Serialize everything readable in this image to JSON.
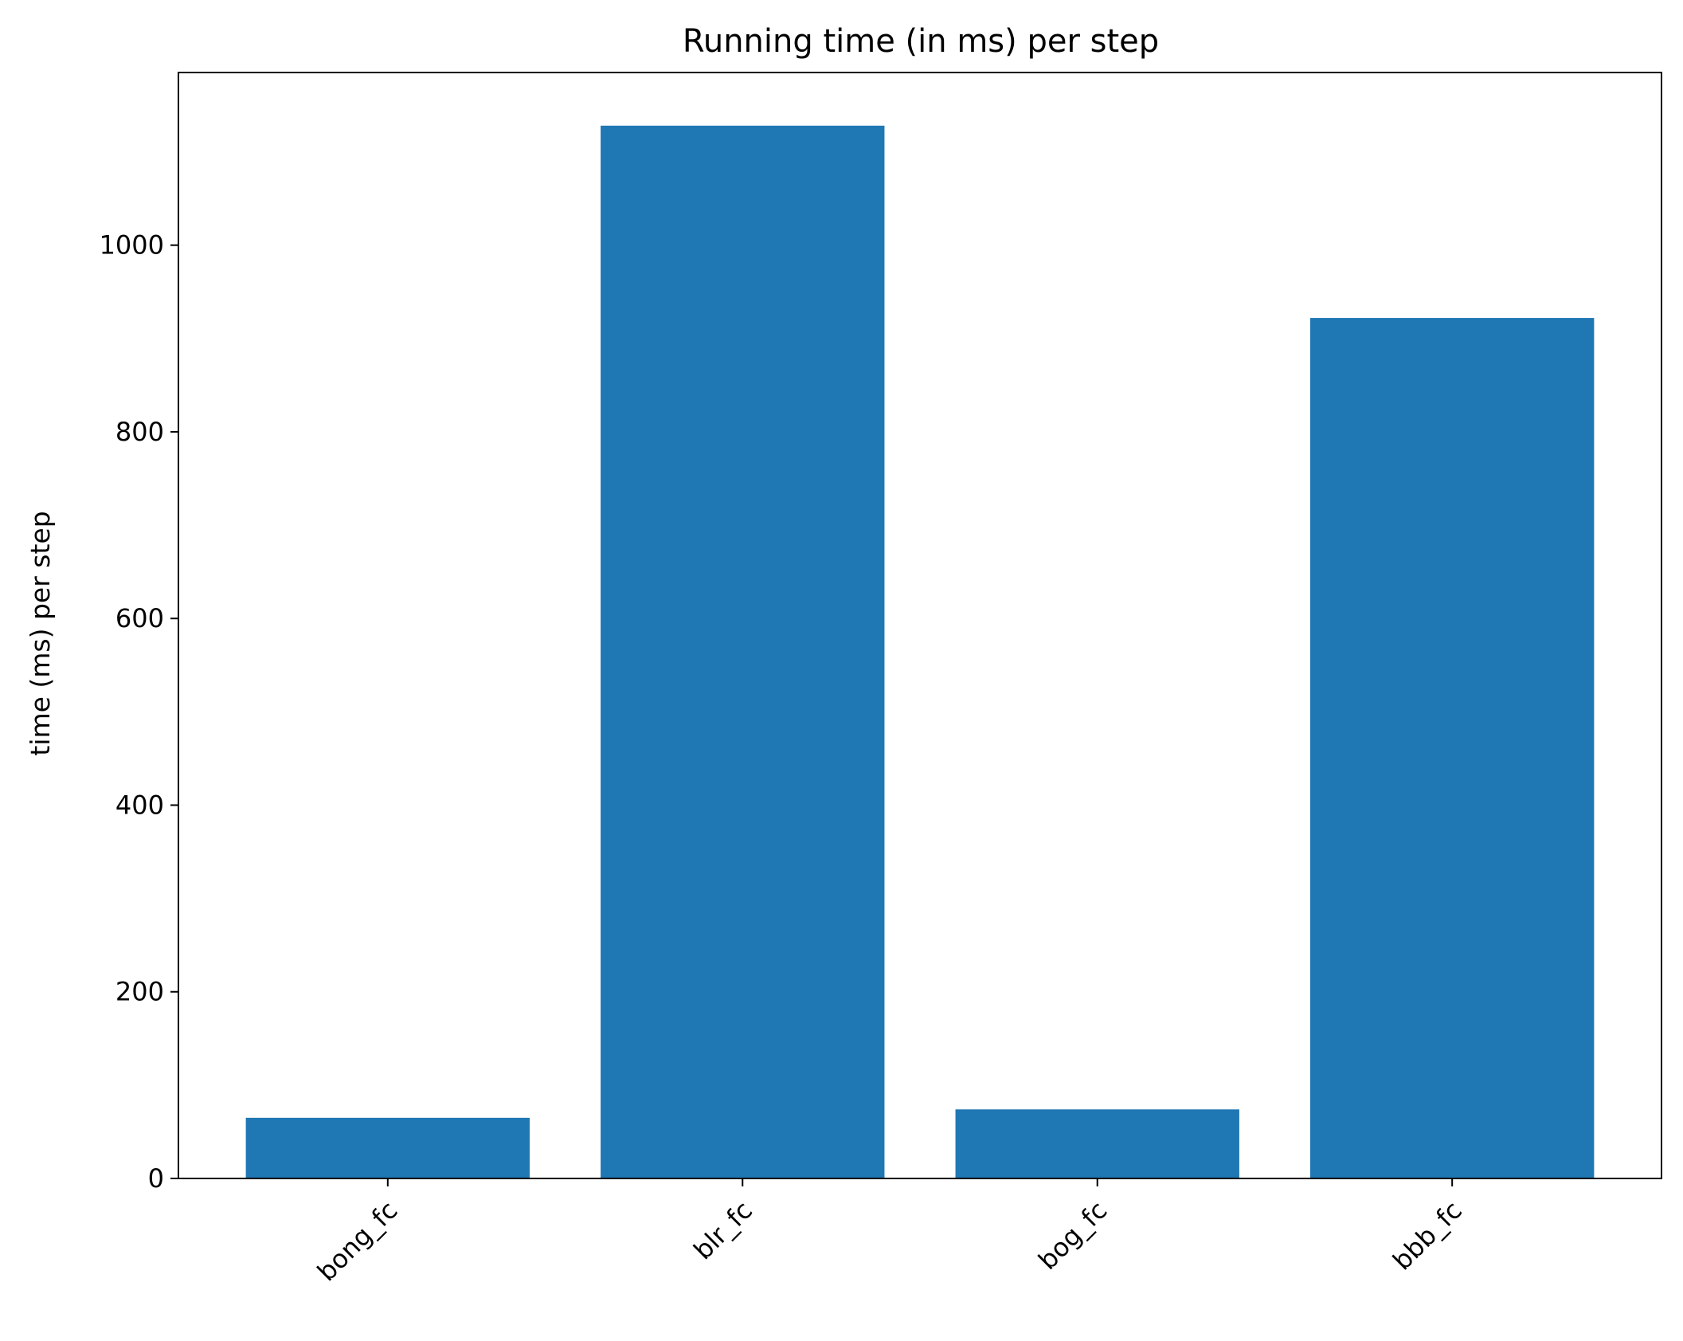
{
  "chart_data": {
    "type": "bar",
    "title": "Running time (in ms) per step",
    "xlabel": "",
    "ylabel": "time (ms) per step",
    "categories": [
      "bong_fc",
      "blr_fc",
      "bog_fc",
      "bbb_fc"
    ],
    "values": [
      65,
      1128,
      74,
      922
    ],
    "ylim": [
      0,
      1185
    ],
    "yticks": [
      0,
      200,
      400,
      600,
      800,
      1000
    ],
    "ytick_labels": [
      "0",
      "200",
      "400",
      "600",
      "800",
      "1000"
    ],
    "grid": false,
    "legend": "none",
    "bar_color": "#1f77b4",
    "xtick_rotation_deg": 45
  }
}
